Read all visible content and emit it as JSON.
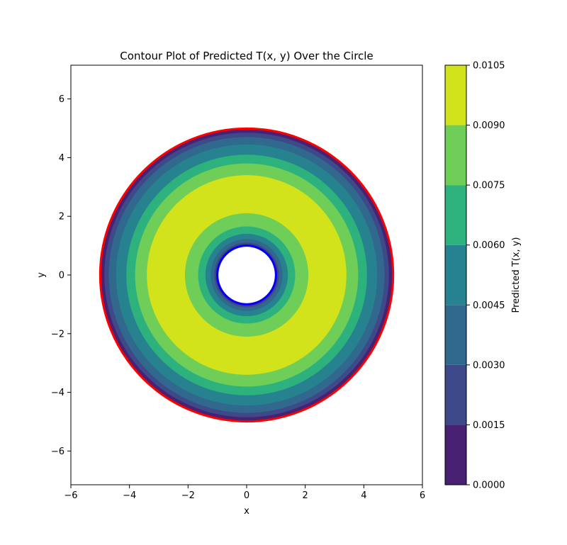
{
  "chart_data": {
    "type": "contour",
    "title": "Contour Plot of Predicted T(x, y) Over the Circle",
    "xlabel": "x",
    "ylabel": "y",
    "xlim": [
      -6,
      6
    ],
    "ylim": [
      -7.15,
      7.15
    ],
    "xticks": [
      -6,
      -4,
      -2,
      0,
      2,
      4,
      6
    ],
    "xtick_labels": [
      "−6",
      "−4",
      "−2",
      "0",
      "2",
      "4",
      "6"
    ],
    "yticks": [
      -6,
      -4,
      -2,
      0,
      2,
      4,
      6
    ],
    "ytick_labels": [
      "−6",
      "−4",
      "−2",
      "0",
      "2",
      "4",
      "6"
    ],
    "grid": false,
    "colorbar": {
      "label": "Predicted T(x, y)",
      "levels": [
        0.0,
        0.0015,
        0.003,
        0.0045,
        0.006,
        0.0075,
        0.009,
        0.0105
      ],
      "tick_labels": [
        "0.0000",
        "0.0015",
        "0.0030",
        "0.0045",
        "0.0060",
        "0.0075",
        "0.0090",
        "0.0105"
      ],
      "colors": [
        "#482173",
        "#3e4989",
        "#31688e",
        "#26828e",
        "#2db27d",
        "#6ece58",
        "#d2e21b"
      ]
    },
    "domain": {
      "outer_radius": 5,
      "inner_radius": 1,
      "outer_boundary_color": "#ff0000",
      "inner_boundary_color": "#0000ff"
    },
    "bands": [
      {
        "level": 0,
        "r_inner": 4.85,
        "r_outer": 5.0
      },
      {
        "level": 1,
        "r_inner": 4.7,
        "r_outer": 4.85
      },
      {
        "level": 2,
        "r_inner": 4.45,
        "r_outer": 4.7
      },
      {
        "level": 3,
        "r_inner": 4.1,
        "r_outer": 4.45
      },
      {
        "level": 4,
        "r_inner": 3.8,
        "r_outer": 4.1
      },
      {
        "level": 5,
        "r_inner": 3.4,
        "r_outer": 3.8
      },
      {
        "level": 6,
        "r_inner": 2.1,
        "r_outer": 3.4
      },
      {
        "level": 5,
        "r_inner": 1.65,
        "r_outer": 2.1
      },
      {
        "level": 4,
        "r_inner": 1.4,
        "r_outer": 1.65
      },
      {
        "level": 3,
        "r_inner": 1.22,
        "r_outer": 1.4
      },
      {
        "level": 2,
        "r_inner": 1.1,
        "r_outer": 1.22
      },
      {
        "level": 1,
        "r_inner": 1.04,
        "r_outer": 1.1
      },
      {
        "level": 0,
        "r_inner": 1.0,
        "r_outer": 1.04
      }
    ]
  }
}
